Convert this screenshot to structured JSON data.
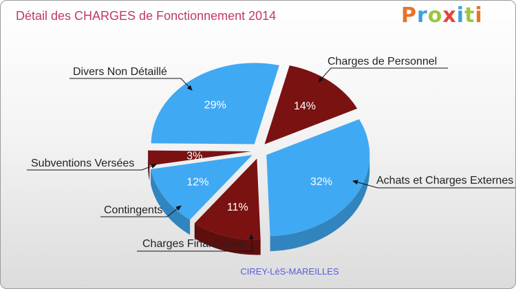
{
  "header": {
    "title": "Détail des CHARGES de Fonctionnement 2014",
    "logo": "Proxiti",
    "logo_letters": [
      "P",
      "r",
      "o",
      "x",
      "i",
      "t",
      "i"
    ],
    "logo_colors": [
      "#e8732a",
      "#3aa0e0",
      "#9bc63c",
      "#e2453c",
      "#3aa0e0",
      "#9bc63c",
      "#e8732a"
    ]
  },
  "chart_data": {
    "type": "pie",
    "title": "Détail des CHARGES de Fonctionnement 2014",
    "subtitle": "CIREY-LèS-MAREILLES",
    "slices": [
      {
        "label": "Charges de Personnel",
        "value": 14,
        "pct_label": "14%",
        "color": "#7a1212"
      },
      {
        "label": "Achats et Charges Externes",
        "value": 32,
        "pct_label": "32%",
        "color": "#40a9f3"
      },
      {
        "label": "Charges Financières",
        "value": 11,
        "pct_label": "11%",
        "color": "#7a1212"
      },
      {
        "label": "Contingents",
        "value": 12,
        "pct_label": "12%",
        "color": "#40a9f3"
      },
      {
        "label": "Subventions Versées",
        "value": 3,
        "pct_label": "3%",
        "color": "#7a1212"
      },
      {
        "label": "Divers Non Détaillé",
        "value": 29,
        "pct_label": "29%",
        "color": "#40a9f3"
      }
    ]
  }
}
